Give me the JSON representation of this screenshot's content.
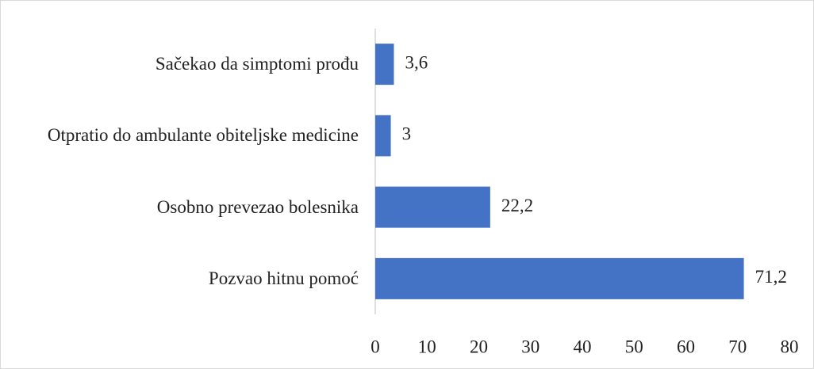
{
  "chart_data": {
    "type": "bar",
    "orientation": "horizontal",
    "categories": [
      "Sačekao da simptomi prođu",
      "Otpratio do ambulante obiteljske medicine",
      "Osobno prevezao bolesnika",
      "Pozvao hitnu pomoć"
    ],
    "values": [
      3.6,
      3,
      22.2,
      71.2
    ],
    "value_labels": [
      "3,6",
      "3",
      "22,2",
      "71,2"
    ],
    "color": "#4472c4",
    "xlim": [
      0,
      80
    ],
    "xticks": [
      0,
      10,
      20,
      30,
      40,
      50,
      60,
      70,
      80
    ],
    "grid": false
  }
}
